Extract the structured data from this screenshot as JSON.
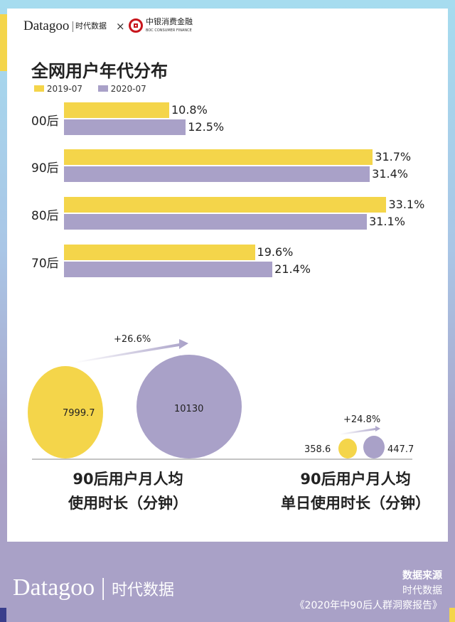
{
  "header": {
    "brand": "Datagoo",
    "brand_cn": "时代数据",
    "times": "×",
    "partner": "中银消费金融",
    "partner_en": "BOC CONSUMER FINANCE"
  },
  "colors": {
    "y2019": "#f4d54a",
    "y2020": "#a9a1c8",
    "frame_top": "#a6dcef",
    "frame_bottom": "#a9a1c7"
  },
  "chart_data": [
    {
      "type": "bar",
      "orientation": "horizontal",
      "title": "全网用户年代分布",
      "categories": [
        "00后",
        "90后",
        "80后",
        "70后"
      ],
      "series": [
        {
          "name": "2019-07",
          "values": [
            10.8,
            31.7,
            33.1,
            19.6
          ],
          "labels": [
            "10.8%",
            "31.7%",
            "33.1%",
            "19.6%"
          ]
        },
        {
          "name": "2020-07",
          "values": [
            12.5,
            31.4,
            31.1,
            21.4
          ],
          "labels": [
            "12.5%",
            "31.4%",
            "31.1%",
            "21.4%"
          ]
        }
      ],
      "legend": "top-left"
    },
    {
      "type": "bubble",
      "title_lines": [
        "90后用户月人均",
        "使用时长（分钟）"
      ],
      "values": [
        7999.7,
        10130
      ],
      "labels": [
        "7999.7",
        "10130"
      ],
      "change": "+26.6%"
    },
    {
      "type": "bubble",
      "title_lines": [
        "90后用户月人均",
        "单日使用时长（分钟）"
      ],
      "values": [
        358.6,
        447.7
      ],
      "labels": [
        "358.6",
        "447.7"
      ],
      "change": "+24.8%"
    }
  ],
  "footer": {
    "brand": "Datagoo",
    "brand_cn": "时代数据",
    "source_title": "数据来源",
    "source_name": "时代数据",
    "source_report": "《2020年中90后人群洞察报告》"
  }
}
